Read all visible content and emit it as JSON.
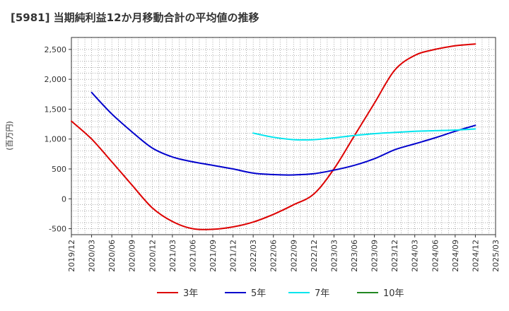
{
  "chart_data": {
    "type": "line",
    "title": "[5981]  当期純利益12か月移動合計の平均値の推移",
    "ylabel": "(百万円)",
    "xlabel": "",
    "ylim": [
      -600,
      2700
    ],
    "y_ticks": [
      -500,
      0,
      500,
      1000,
      1500,
      2000,
      2500
    ],
    "y_tick_labels": [
      "-500",
      "0",
      "500",
      "1,000",
      "1,500",
      "2,000",
      "2,500"
    ],
    "x_ticks": [
      "2019/12",
      "2020/03",
      "2020/06",
      "2020/09",
      "2020/12",
      "2021/03",
      "2021/06",
      "2021/09",
      "2021/12",
      "2022/03",
      "2022/06",
      "2022/09",
      "2022/12",
      "2023/03",
      "2023/06",
      "2023/09",
      "2023/12",
      "2024/03",
      "2024/06",
      "2024/09",
      "2024/12",
      "2025/03"
    ],
    "grid": true,
    "legend_position": "bottom",
    "series": [
      {
        "name": "3年",
        "color": "#dd0000",
        "x": [
          "2019/12",
          "2020/03",
          "2020/06",
          "2020/09",
          "2020/12",
          "2021/03",
          "2021/06",
          "2021/09",
          "2021/12",
          "2022/03",
          "2022/06",
          "2022/09",
          "2022/12",
          "2023/03",
          "2023/06",
          "2023/09",
          "2023/12",
          "2024/03",
          "2024/06",
          "2024/09",
          "2024/12"
        ],
        "values": [
          1300,
          1000,
          620,
          230,
          -150,
          -380,
          -500,
          -510,
          -470,
          -390,
          -260,
          -100,
          80,
          500,
          1050,
          1600,
          2150,
          2400,
          2500,
          2560,
          2590
        ]
      },
      {
        "name": "5年",
        "color": "#0000cc",
        "x": [
          "2020/03",
          "2020/06",
          "2020/09",
          "2020/12",
          "2021/03",
          "2021/06",
          "2021/09",
          "2021/12",
          "2022/03",
          "2022/06",
          "2022/09",
          "2022/12",
          "2023/03",
          "2023/06",
          "2023/09",
          "2023/12",
          "2024/03",
          "2024/06",
          "2024/09",
          "2024/12"
        ],
        "values": [
          1780,
          1420,
          1120,
          850,
          700,
          620,
          560,
          500,
          430,
          405,
          400,
          420,
          480,
          560,
          670,
          820,
          920,
          1020,
          1130,
          1230
        ]
      },
      {
        "name": "7年",
        "color": "#00e5ee",
        "x": [
          "2022/03",
          "2022/06",
          "2022/09",
          "2022/12",
          "2023/03",
          "2023/06",
          "2023/09",
          "2023/12",
          "2024/03",
          "2024/06",
          "2024/09",
          "2024/12"
        ],
        "values": [
          1100,
          1030,
          990,
          990,
          1020,
          1060,
          1090,
          1110,
          1130,
          1140,
          1150,
          1170
        ]
      },
      {
        "name": "10年",
        "color": "#228822",
        "x": [],
        "values": []
      }
    ]
  }
}
